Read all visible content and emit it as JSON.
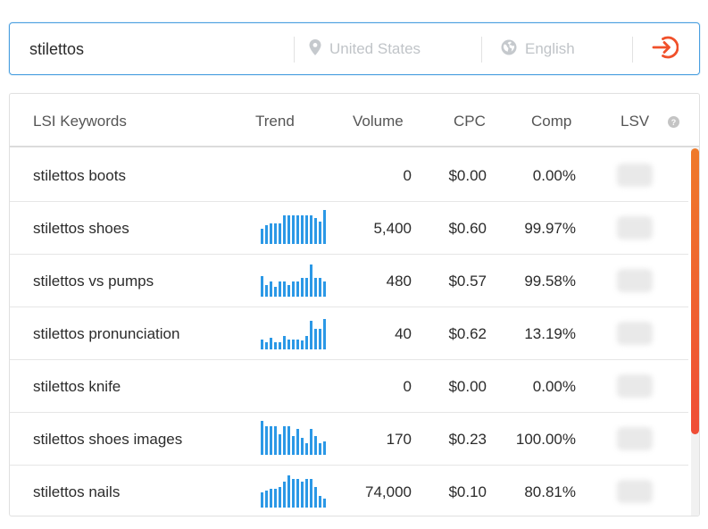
{
  "search": {
    "query": "stilettos",
    "location": "United States",
    "language": "English",
    "location_icon": "map-pin-icon",
    "language_icon": "globe-icon",
    "submit_icon": "enter-arrow-icon",
    "accent": "#f0502a"
  },
  "table": {
    "headers": {
      "keyword": "LSI Keywords",
      "trend": "Trend",
      "volume": "Volume",
      "cpc": "CPC",
      "comp": "Comp",
      "lsv": "LSV",
      "lsv_help_icon": "help-icon"
    },
    "rows": [
      {
        "keyword": "stilettos boots",
        "volume": "0",
        "cpc": "$0.00",
        "comp": "0.00%",
        "trend": []
      },
      {
        "keyword": "stilettos shoes",
        "volume": "5,400",
        "cpc": "$0.60",
        "comp": "99.97%",
        "trend": [
          0.45,
          0.55,
          0.6,
          0.6,
          0.6,
          0.85,
          0.85,
          0.85,
          0.85,
          0.85,
          0.85,
          0.85,
          0.75,
          0.65,
          1.0
        ]
      },
      {
        "keyword": "stilettos vs pumps",
        "volume": "480",
        "cpc": "$0.57",
        "comp": "99.58%",
        "trend": [
          0.6,
          0.35,
          0.45,
          0.3,
          0.45,
          0.45,
          0.35,
          0.45,
          0.45,
          0.55,
          0.55,
          0.95,
          0.55,
          0.55,
          0.45
        ]
      },
      {
        "keyword": "stilettos pronunciation",
        "volume": "40",
        "cpc": "$0.62",
        "comp": "13.19%",
        "trend": [
          0.3,
          0.2,
          0.35,
          0.2,
          0.2,
          0.4,
          0.3,
          0.3,
          0.3,
          0.25,
          0.4,
          0.85,
          0.6,
          0.6,
          0.9
        ]
      },
      {
        "keyword": "stilettos knife",
        "volume": "0",
        "cpc": "$0.00",
        "comp": "0.00%",
        "trend": []
      },
      {
        "keyword": "stilettos shoes images",
        "volume": "170",
        "cpc": "$0.23",
        "comp": "100.00%",
        "trend": [
          1.0,
          0.85,
          0.85,
          0.85,
          0.6,
          0.85,
          0.85,
          0.55,
          0.75,
          0.5,
          0.35,
          0.75,
          0.55,
          0.35,
          0.4
        ]
      },
      {
        "keyword": "stilettos nails",
        "volume": "74,000",
        "cpc": "$0.10",
        "comp": "80.81%",
        "trend": [
          0.45,
          0.5,
          0.55,
          0.55,
          0.6,
          0.75,
          0.95,
          0.85,
          0.85,
          0.75,
          0.85,
          0.85,
          0.6,
          0.35,
          0.25
        ]
      }
    ]
  },
  "colors": {
    "trend_bar": "#2b98e6",
    "focus_border": "#4a9fe0",
    "scrollbar_top": "#ef7a2a",
    "scrollbar_bottom": "#ef4d36"
  }
}
